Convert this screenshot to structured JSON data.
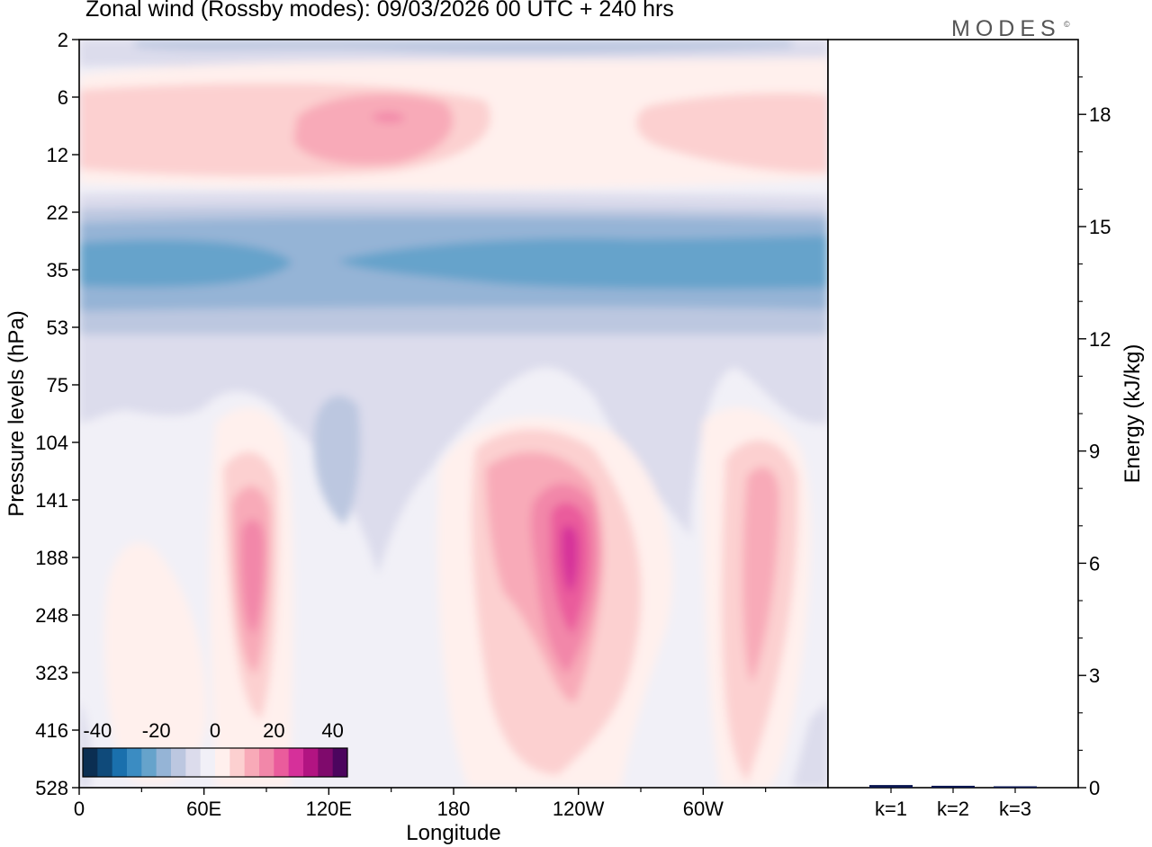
{
  "title": "Zonal wind (Rossby modes):  09/03/2026  00 UTC  + 240 hrs",
  "brand": "MODES",
  "brand_mark": "©",
  "chart_data": [
    {
      "type": "heatmap",
      "title": "Zonal wind (Rossby modes):  09/03/2026  00 UTC  + 240 hrs",
      "xlabel": "Longitude",
      "ylabel": "Pressure levels (hPa)",
      "x_ticks": [
        "0",
        "60E",
        "120E",
        "180",
        "120W",
        "60W"
      ],
      "x_tick_lon": [
        0,
        60,
        120,
        180,
        240,
        300
      ],
      "xlim": [
        0,
        360
      ],
      "y_ticks": [
        "2",
        "6",
        "12",
        "22",
        "35",
        "53",
        "75",
        "104",
        "141",
        "188",
        "248",
        "323",
        "416",
        "528"
      ],
      "colorbar": {
        "labels": [
          "-40",
          "-20",
          "0",
          "20",
          "40"
        ],
        "range": [
          -45,
          45
        ],
        "step": 5,
        "colors": [
          "#0b2e52",
          "#0f4a7a",
          "#1a70ad",
          "#3b8cc2",
          "#66a3cb",
          "#95b4d6",
          "#bcc7e0",
          "#dcdcec",
          "#f1f0f7",
          "#fff0ed",
          "#fcd0d0",
          "#f8aab8",
          "#f287a9",
          "#ea5c9c",
          "#d6309a",
          "#b21482",
          "#7f0a6c",
          "#4c055e"
        ]
      },
      "features": [
        {
          "label": "easterly band",
          "lon": [
            0,
            360
          ],
          "level_hPa": 35,
          "value": -25
        },
        {
          "label": "westerly band",
          "lon": [
            0,
            360
          ],
          "level_hPa": 8,
          "value": 10
        },
        {
          "label": "westerly maximum",
          "lon": 150,
          "level_hPa": 8,
          "value": 15
        },
        {
          "label": "tropospheric maximum",
          "lon": 82,
          "level_hPa": 188,
          "value": 15
        },
        {
          "label": "tropospheric maximum",
          "lon": 234,
          "level_hPa": 188,
          "value": 25
        },
        {
          "label": "tropospheric maximum",
          "lon": 330,
          "level_hPa": 188,
          "value": 10
        },
        {
          "label": "easterly pocket",
          "lon": 125,
          "level_hPa": 104,
          "value": -5
        }
      ]
    },
    {
      "type": "bar",
      "categories": [
        "k=1",
        "k=2",
        "k=3"
      ],
      "values": [
        0.07,
        0.05,
        0.02
      ],
      "ylabel": "Energy (kJ/kg)",
      "y_ticks": [
        "0",
        "3",
        "6",
        "9",
        "12",
        "15",
        "18"
      ],
      "ylim": [
        0,
        20
      ],
      "bar_color": "#0a1650"
    }
  ]
}
